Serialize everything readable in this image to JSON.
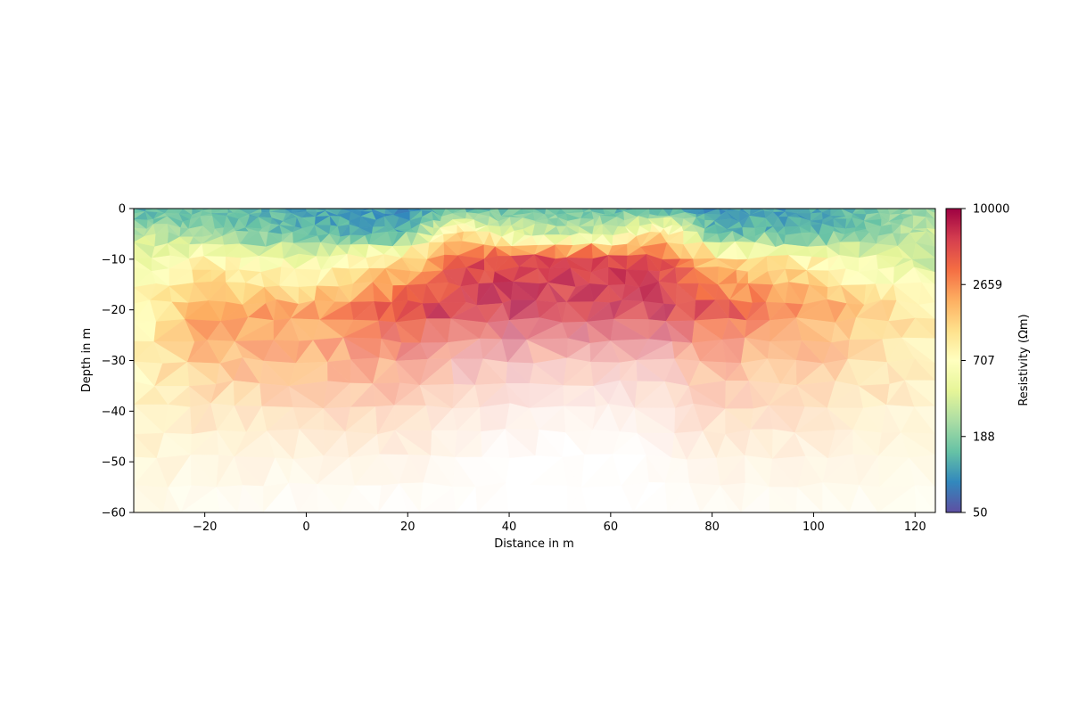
{
  "chart_data": {
    "type": "heatmap",
    "title": "",
    "xlabel": "Distance in m",
    "ylabel": "Depth in m",
    "xlim": [
      -34,
      124
    ],
    "ylim": [
      -60,
      0
    ],
    "x_ticks": [
      -20,
      0,
      20,
      40,
      60,
      80,
      100,
      120
    ],
    "y_ticks": [
      0,
      -10,
      -20,
      -30,
      -40,
      -50,
      -60
    ],
    "grid": false,
    "colorbar": {
      "label": "Resistivity (Ωm)",
      "scale": "log",
      "range": [
        50,
        10000
      ],
      "ticks": [
        "50",
        "188",
        "707",
        "2659",
        "10000"
      ],
      "colormap": "Spectral_r",
      "stops": [
        "#5e4fa2",
        "#3288bd",
        "#66c2a5",
        "#abdda4",
        "#e6f598",
        "#ffffbf",
        "#fee08b",
        "#fdae61",
        "#f46d43",
        "#d53e4f",
        "#9e0142"
      ]
    },
    "sample_x": [
      -34,
      -20,
      0,
      20,
      30,
      40,
      50,
      60,
      70,
      80,
      100,
      124
    ],
    "sample_depth": [
      0,
      -5,
      -10,
      -20,
      -30,
      -40,
      -50,
      -60
    ],
    "resistivity_grid": [
      [
        120,
        150,
        110,
        95,
        110,
        140,
        150,
        130,
        105,
        100,
        110,
        220
      ],
      [
        300,
        200,
        130,
        120,
        1500,
        400,
        300,
        350,
        1500,
        150,
        120,
        350
      ],
      [
        500,
        800,
        500,
        1200,
        4500,
        5500,
        6000,
        5500,
        5000,
        1500,
        800,
        300
      ],
      [
        700,
        2400,
        2200,
        5500,
        6500,
        7000,
        6500,
        7000,
        6500,
        5000,
        2500,
        900
      ],
      [
        800,
        2000,
        2500,
        3500,
        4500,
        5000,
        4000,
        4500,
        4500,
        3000,
        2200,
        1000
      ],
      [
        900,
        1500,
        2000,
        2500,
        3000,
        3000,
        3000,
        3000,
        3000,
        2500,
        1800,
        1000
      ],
      [
        900,
        1200,
        1500,
        1800,
        2000,
        2000,
        2000,
        2000,
        2000,
        1800,
        1400,
        950
      ],
      [
        850,
        1000,
        1100,
        1200,
        1200,
        1300,
        1300,
        1300,
        1200,
        1100,
        1000,
        900
      ]
    ],
    "coverage_grid": [
      [
        1,
        1,
        1,
        1,
        1,
        1,
        1,
        1,
        1,
        1,
        1,
        1
      ],
      [
        1,
        1,
        1,
        1,
        1,
        1,
        1,
        1,
        1,
        1,
        1,
        1
      ],
      [
        1,
        1,
        1,
        1,
        1,
        1,
        1,
        1,
        1,
        1,
        1,
        1
      ],
      [
        1,
        1,
        0.9,
        1,
        0.9,
        0.85,
        0.85,
        0.85,
        0.85,
        0.95,
        0.9,
        0.85
      ],
      [
        0.8,
        0.75,
        0.7,
        0.6,
        0.4,
        0.35,
        0.35,
        0.35,
        0.35,
        0.55,
        0.6,
        0.65
      ],
      [
        0.6,
        0.45,
        0.4,
        0.35,
        0.2,
        0.15,
        0.1,
        0.1,
        0.15,
        0.35,
        0.35,
        0.4
      ],
      [
        0.4,
        0.25,
        0.2,
        0.15,
        0.08,
        0,
        0,
        0,
        0.05,
        0.2,
        0.2,
        0.25
      ],
      [
        0.25,
        0.12,
        0.05,
        0.02,
        0,
        0,
        0,
        0,
        0,
        0.05,
        0.1,
        0.15
      ]
    ]
  }
}
